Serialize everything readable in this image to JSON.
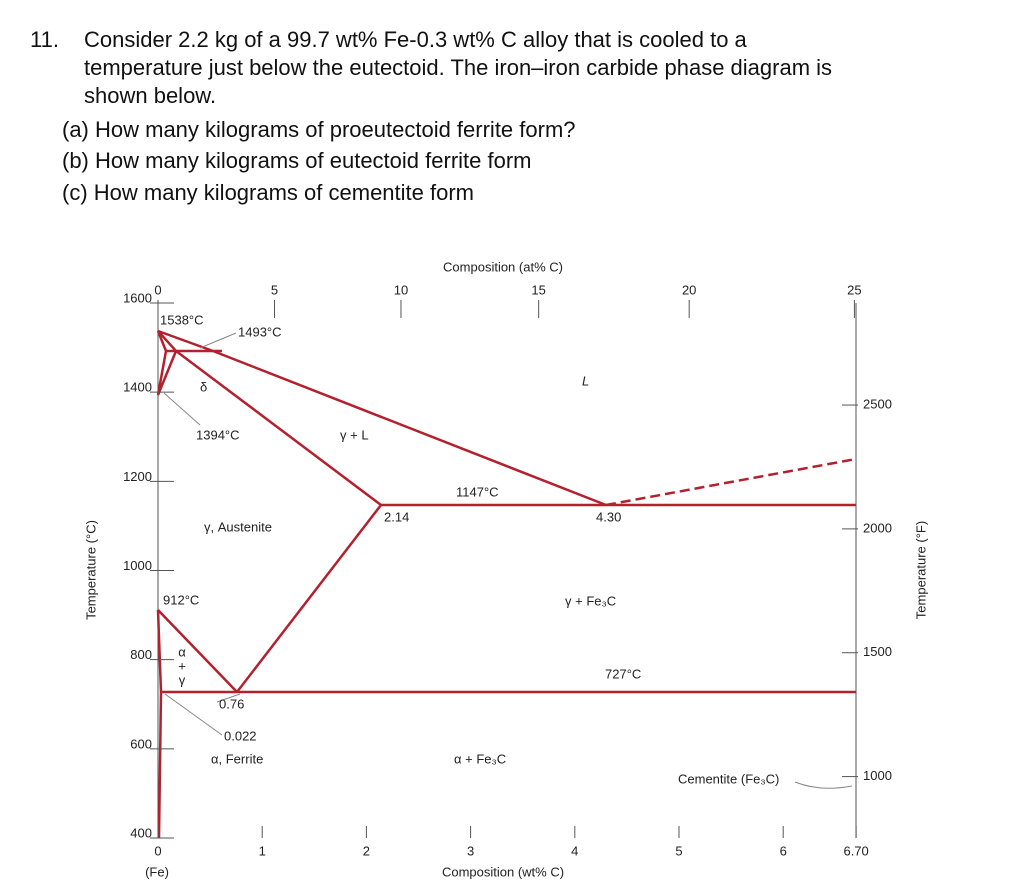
{
  "question": {
    "number": "11.",
    "lines": [
      "Consider 2.2 kg of a 99.7 wt% Fe-0.3 wt% C alloy that is cooled to a",
      "temperature just below the eutectoid. The iron–iron carbide phase diagram is",
      "shown below."
    ],
    "parts": [
      "(a) How many kilograms of proeutectoid ferrite form?",
      "(b) How many kilograms of eutectoid ferrite form",
      "(c) How many kilograms of cementite form"
    ]
  },
  "figure": {
    "top_label": "Composition (at% C)",
    "x_label": "Composition (wt% C)",
    "x_sub_label": "(Fe)",
    "left_label": "Temperature (°C)",
    "right_label": "Temperature (°F)",
    "xticks": [
      0,
      1,
      2,
      3,
      4,
      5,
      6,
      {
        "value": 6.7,
        "label": "6.70"
      }
    ],
    "top_ticks": [
      0,
      5,
      10,
      15,
      20,
      25
    ],
    "yticks": [
      400,
      600,
      800,
      1000,
      1200,
      1400,
      1600
    ],
    "y2ticks": [
      1000,
      1500,
      2000,
      2500
    ],
    "annotations": [
      "1538°C",
      "1493°C",
      "δ",
      "1394°C",
      "γ + L",
      "L",
      "1147°C",
      "2.14",
      "4.30",
      "γ, Austenite",
      "912°C",
      "γ + Fe₃C",
      "727°C",
      "0.76",
      "0.022",
      "α, Ferrite",
      "α + Fe₃C",
      "Cementite (Fe₃C)"
    ],
    "alpha_gamma": [
      "α",
      "+",
      "γ"
    ]
  }
}
